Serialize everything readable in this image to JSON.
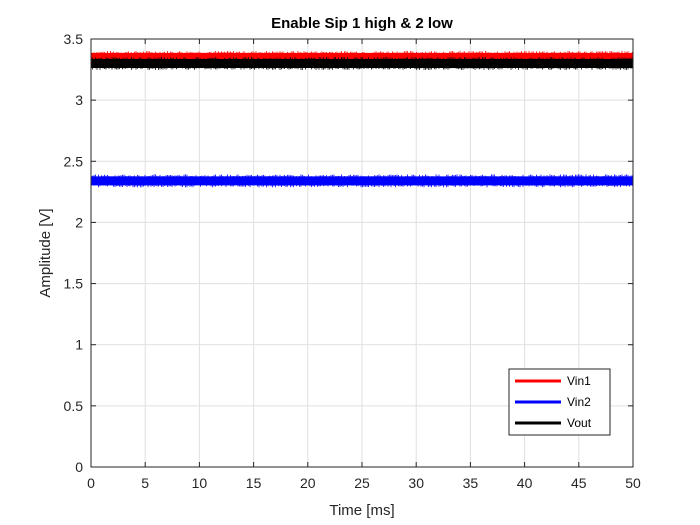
{
  "chart_data": {
    "type": "line",
    "title": "Enable Sip 1 high & 2 low",
    "xlabel": "Time [ms]",
    "ylabel": "Amplitude [V]",
    "xlim": [
      0,
      50
    ],
    "ylim": [
      0,
      3.5
    ],
    "xticks": [
      "0",
      "5",
      "10",
      "15",
      "20",
      "25",
      "30",
      "35",
      "40",
      "45",
      "50"
    ],
    "yticks": [
      "0",
      "0.5",
      "1",
      "1.5",
      "2",
      "2.5",
      "3",
      "3.5"
    ],
    "grid": true,
    "legend_position": "bottom-right",
    "series": [
      {
        "name": "Vin1",
        "color": "#ff0000",
        "x": [
          0,
          50
        ],
        "y": [
          3.35,
          3.35
        ]
      },
      {
        "name": "Vin2",
        "color": "#0000ff",
        "x": [
          0,
          50
        ],
        "y": [
          2.34,
          2.34
        ]
      },
      {
        "name": "Vout",
        "color": "#000000",
        "x": [
          0,
          50
        ],
        "y": [
          3.3,
          3.3
        ]
      }
    ]
  }
}
